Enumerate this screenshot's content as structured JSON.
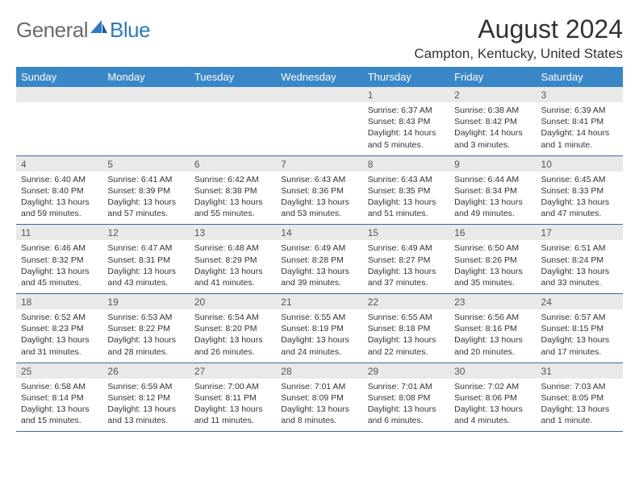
{
  "logo": {
    "general": "General",
    "blue": "Blue",
    "icon_color": "#2d7bc0"
  },
  "title": "August 2024",
  "location": "Campton, Kentucky, United States",
  "header_bg": "#3a87c7",
  "header_fg": "#ffffff",
  "daynum_bg": "#e9e9e9",
  "border_color": "#3a6a9a",
  "weekdays": [
    "Sunday",
    "Monday",
    "Tuesday",
    "Wednesday",
    "Thursday",
    "Friday",
    "Saturday"
  ],
  "weeks": [
    [
      null,
      null,
      null,
      null,
      {
        "n": "1",
        "sr": "6:37 AM",
        "ss": "8:43 PM",
        "dl": "14 hours and 5 minutes."
      },
      {
        "n": "2",
        "sr": "6:38 AM",
        "ss": "8:42 PM",
        "dl": "14 hours and 3 minutes."
      },
      {
        "n": "3",
        "sr": "6:39 AM",
        "ss": "8:41 PM",
        "dl": "14 hours and 1 minute."
      }
    ],
    [
      {
        "n": "4",
        "sr": "6:40 AM",
        "ss": "8:40 PM",
        "dl": "13 hours and 59 minutes."
      },
      {
        "n": "5",
        "sr": "6:41 AM",
        "ss": "8:39 PM",
        "dl": "13 hours and 57 minutes."
      },
      {
        "n": "6",
        "sr": "6:42 AM",
        "ss": "8:38 PM",
        "dl": "13 hours and 55 minutes."
      },
      {
        "n": "7",
        "sr": "6:43 AM",
        "ss": "8:36 PM",
        "dl": "13 hours and 53 minutes."
      },
      {
        "n": "8",
        "sr": "6:43 AM",
        "ss": "8:35 PM",
        "dl": "13 hours and 51 minutes."
      },
      {
        "n": "9",
        "sr": "6:44 AM",
        "ss": "8:34 PM",
        "dl": "13 hours and 49 minutes."
      },
      {
        "n": "10",
        "sr": "6:45 AM",
        "ss": "8:33 PM",
        "dl": "13 hours and 47 minutes."
      }
    ],
    [
      {
        "n": "11",
        "sr": "6:46 AM",
        "ss": "8:32 PM",
        "dl": "13 hours and 45 minutes."
      },
      {
        "n": "12",
        "sr": "6:47 AM",
        "ss": "8:31 PM",
        "dl": "13 hours and 43 minutes."
      },
      {
        "n": "13",
        "sr": "6:48 AM",
        "ss": "8:29 PM",
        "dl": "13 hours and 41 minutes."
      },
      {
        "n": "14",
        "sr": "6:49 AM",
        "ss": "8:28 PM",
        "dl": "13 hours and 39 minutes."
      },
      {
        "n": "15",
        "sr": "6:49 AM",
        "ss": "8:27 PM",
        "dl": "13 hours and 37 minutes."
      },
      {
        "n": "16",
        "sr": "6:50 AM",
        "ss": "8:26 PM",
        "dl": "13 hours and 35 minutes."
      },
      {
        "n": "17",
        "sr": "6:51 AM",
        "ss": "8:24 PM",
        "dl": "13 hours and 33 minutes."
      }
    ],
    [
      {
        "n": "18",
        "sr": "6:52 AM",
        "ss": "8:23 PM",
        "dl": "13 hours and 31 minutes."
      },
      {
        "n": "19",
        "sr": "6:53 AM",
        "ss": "8:22 PM",
        "dl": "13 hours and 28 minutes."
      },
      {
        "n": "20",
        "sr": "6:54 AM",
        "ss": "8:20 PM",
        "dl": "13 hours and 26 minutes."
      },
      {
        "n": "21",
        "sr": "6:55 AM",
        "ss": "8:19 PM",
        "dl": "13 hours and 24 minutes."
      },
      {
        "n": "22",
        "sr": "6:55 AM",
        "ss": "8:18 PM",
        "dl": "13 hours and 22 minutes."
      },
      {
        "n": "23",
        "sr": "6:56 AM",
        "ss": "8:16 PM",
        "dl": "13 hours and 20 minutes."
      },
      {
        "n": "24",
        "sr": "6:57 AM",
        "ss": "8:15 PM",
        "dl": "13 hours and 17 minutes."
      }
    ],
    [
      {
        "n": "25",
        "sr": "6:58 AM",
        "ss": "8:14 PM",
        "dl": "13 hours and 15 minutes."
      },
      {
        "n": "26",
        "sr": "6:59 AM",
        "ss": "8:12 PM",
        "dl": "13 hours and 13 minutes."
      },
      {
        "n": "27",
        "sr": "7:00 AM",
        "ss": "8:11 PM",
        "dl": "13 hours and 11 minutes."
      },
      {
        "n": "28",
        "sr": "7:01 AM",
        "ss": "8:09 PM",
        "dl": "13 hours and 8 minutes."
      },
      {
        "n": "29",
        "sr": "7:01 AM",
        "ss": "8:08 PM",
        "dl": "13 hours and 6 minutes."
      },
      {
        "n": "30",
        "sr": "7:02 AM",
        "ss": "8:06 PM",
        "dl": "13 hours and 4 minutes."
      },
      {
        "n": "31",
        "sr": "7:03 AM",
        "ss": "8:05 PM",
        "dl": "13 hours and 1 minute."
      }
    ]
  ],
  "labels": {
    "sunrise": "Sunrise: ",
    "sunset": "Sunset: ",
    "daylight": "Daylight: "
  }
}
